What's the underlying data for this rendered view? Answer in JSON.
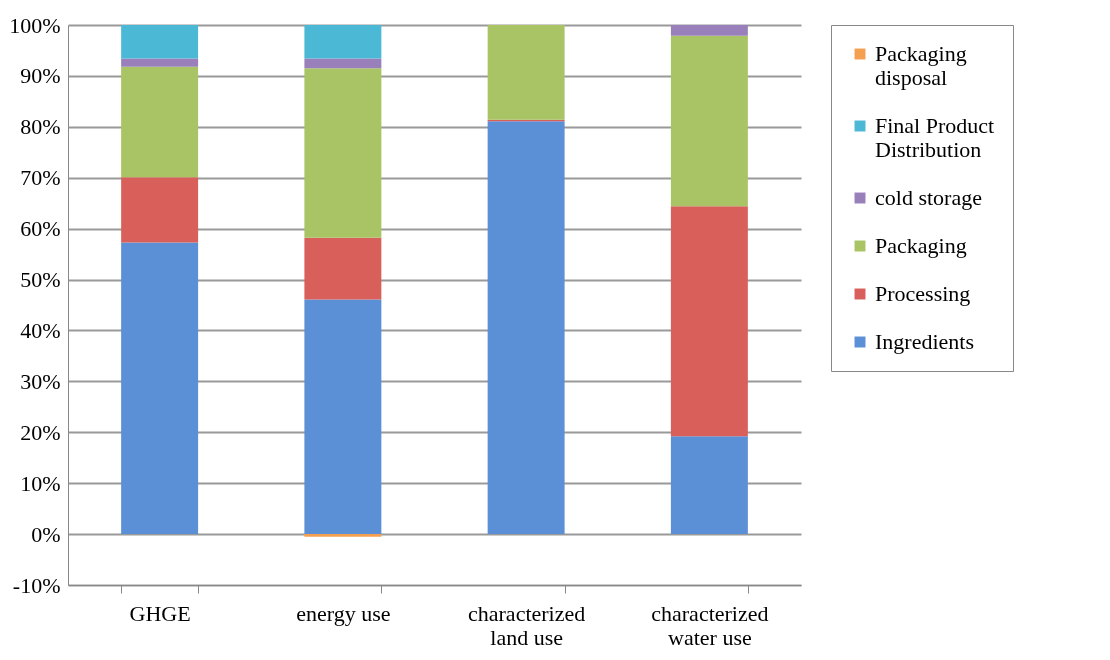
{
  "chart_data": {
    "type": "bar",
    "stacked": true,
    "categories": [
      "GHGE",
      "energy use",
      "characterized land use",
      "characterized water use"
    ],
    "series": [
      {
        "name": "Ingredients",
        "color": "#5b8fd6",
        "values": [
          57.3,
          46.1,
          81.1,
          19.2
        ]
      },
      {
        "name": "Processing",
        "color": "#d9605a",
        "values": [
          12.8,
          12.1,
          0.3,
          45.2
        ]
      },
      {
        "name": "Packaging",
        "color": "#a8c464",
        "values": [
          21.7,
          33.3,
          18.6,
          33.5
        ]
      },
      {
        "name": "cold storage",
        "color": "#9a80bb",
        "values": [
          1.6,
          1.9,
          0,
          2.1
        ]
      },
      {
        "name": "Final Product Distribution",
        "color": "#4bb8d6",
        "values": [
          6.6,
          6.6,
          0,
          0
        ]
      },
      {
        "name": "Packaging disposal",
        "color": "#f5a050",
        "values": [
          0,
          -0.5,
          0,
          0
        ]
      }
    ],
    "ylim": [
      -10,
      100
    ],
    "yticks": [
      {
        "value": -10,
        "label": "-10%"
      },
      {
        "value": 0,
        "label": "0%"
      },
      {
        "value": 10,
        "label": "10%"
      },
      {
        "value": 20,
        "label": "20%"
      },
      {
        "value": 30,
        "label": "30%"
      },
      {
        "value": 40,
        "label": "40%"
      },
      {
        "value": 50,
        "label": "50%"
      },
      {
        "value": 60,
        "label": "60%"
      },
      {
        "value": 70,
        "label": "70%"
      },
      {
        "value": 80,
        "label": "80%"
      },
      {
        "value": 90,
        "label": "90%"
      },
      {
        "value": 100,
        "label": "100%"
      }
    ],
    "grid": "y",
    "legend": "right"
  }
}
